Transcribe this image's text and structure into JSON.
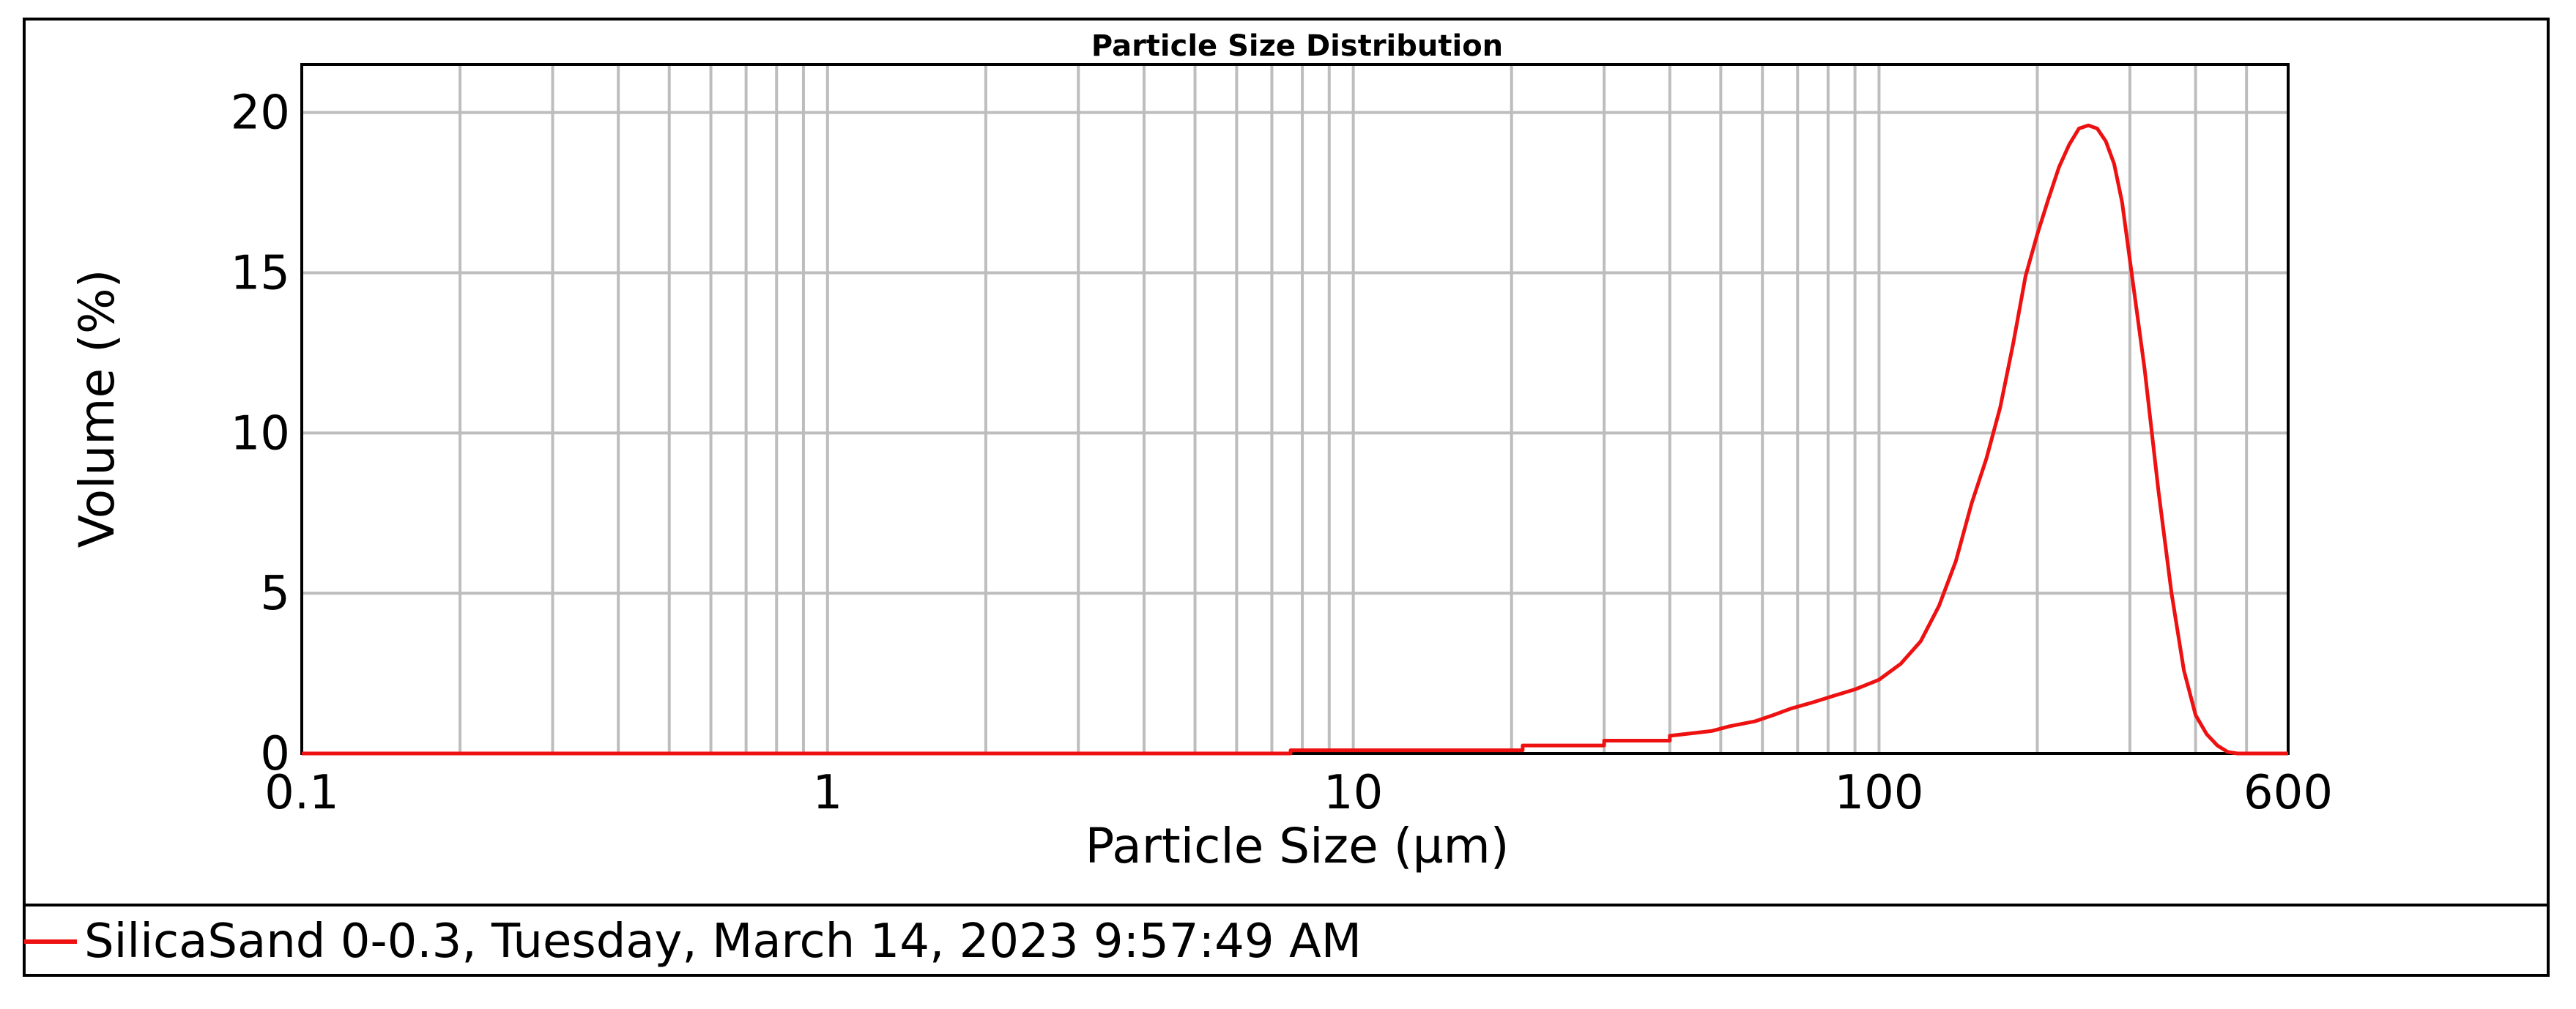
{
  "chart_data": {
    "type": "line",
    "title": "Particle Size Distribution",
    "xlabel": "Particle Size (µm)",
    "ylabel": "Volume (%)",
    "xscale": "log",
    "xlim": [
      0.1,
      600
    ],
    "ylim": [
      0,
      21.5
    ],
    "x_ticks": [
      0.1,
      1,
      10,
      100,
      600
    ],
    "x_tick_labels": [
      "0.1",
      "1",
      "10",
      "100",
      "600"
    ],
    "y_ticks": [
      0,
      5,
      10,
      15,
      20
    ],
    "y_tick_labels": [
      "0",
      "5",
      "10",
      "15",
      "20"
    ],
    "x_minor_gridlines": [
      0.2,
      0.3,
      0.4,
      0.5,
      0.6,
      0.7,
      0.8,
      0.9,
      2,
      3,
      4,
      5,
      6,
      7,
      8,
      9,
      20,
      30,
      40,
      50,
      60,
      70,
      80,
      90,
      200,
      300,
      400,
      500
    ],
    "grid": true,
    "legend_position": "bottom",
    "series": [
      {
        "name": "SilicaSand 0-0.3, Tuesday, March 14, 2023 9:57:49 AM",
        "color": "#ee1111",
        "x": [
          0.1,
          7.6,
          7.6,
          21,
          21,
          30,
          30,
          40,
          40,
          48,
          52,
          58,
          63,
          68,
          75,
          82,
          90,
          100,
          110,
          120,
          130,
          140,
          150,
          160,
          170,
          180,
          190,
          200,
          210,
          220,
          230,
          240,
          250,
          260,
          270,
          280,
          290,
          300,
          320,
          340,
          360,
          380,
          400,
          420,
          440,
          460,
          480,
          500,
          520,
          540,
          560,
          580,
          600
        ],
        "y": [
          0,
          0,
          0.1,
          0.1,
          0.25,
          0.25,
          0.4,
          0.4,
          0.55,
          0.7,
          0.85,
          1.0,
          1.2,
          1.4,
          1.6,
          1.8,
          2.0,
          2.3,
          2.8,
          3.5,
          4.6,
          6.0,
          7.8,
          9.2,
          10.8,
          12.8,
          14.9,
          16.2,
          17.3,
          18.3,
          19.0,
          19.5,
          19.6,
          19.5,
          19.1,
          18.4,
          17.2,
          15.4,
          12.0,
          8.2,
          5.0,
          2.6,
          1.2,
          0.6,
          0.25,
          0.05,
          0,
          0,
          0,
          0,
          0,
          0,
          0
        ]
      }
    ]
  }
}
